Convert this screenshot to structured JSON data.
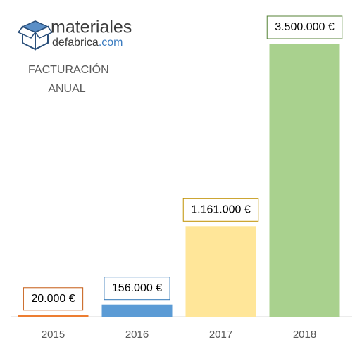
{
  "logo": {
    "name": "materiales",
    "sub": "defabrica",
    "domain": ".com"
  },
  "chart_data": {
    "type": "bar",
    "title": "FACTURACIÓN ANUAL",
    "categories": [
      "2015",
      "2016",
      "2017",
      "2018"
    ],
    "values": [
      20000,
      156000,
      1161000,
      3500000
    ],
    "value_labels": [
      "20.000 €",
      "156.000 €",
      "1.161.000 €",
      "3.500.000 €"
    ],
    "colors": [
      "#ed7d31",
      "#5b9bd5",
      "#ffe699",
      "#a9d18e"
    ],
    "label_border_colors": [
      "#c55a11",
      "#2e75b6",
      "#bf9000",
      "#548235"
    ]
  }
}
